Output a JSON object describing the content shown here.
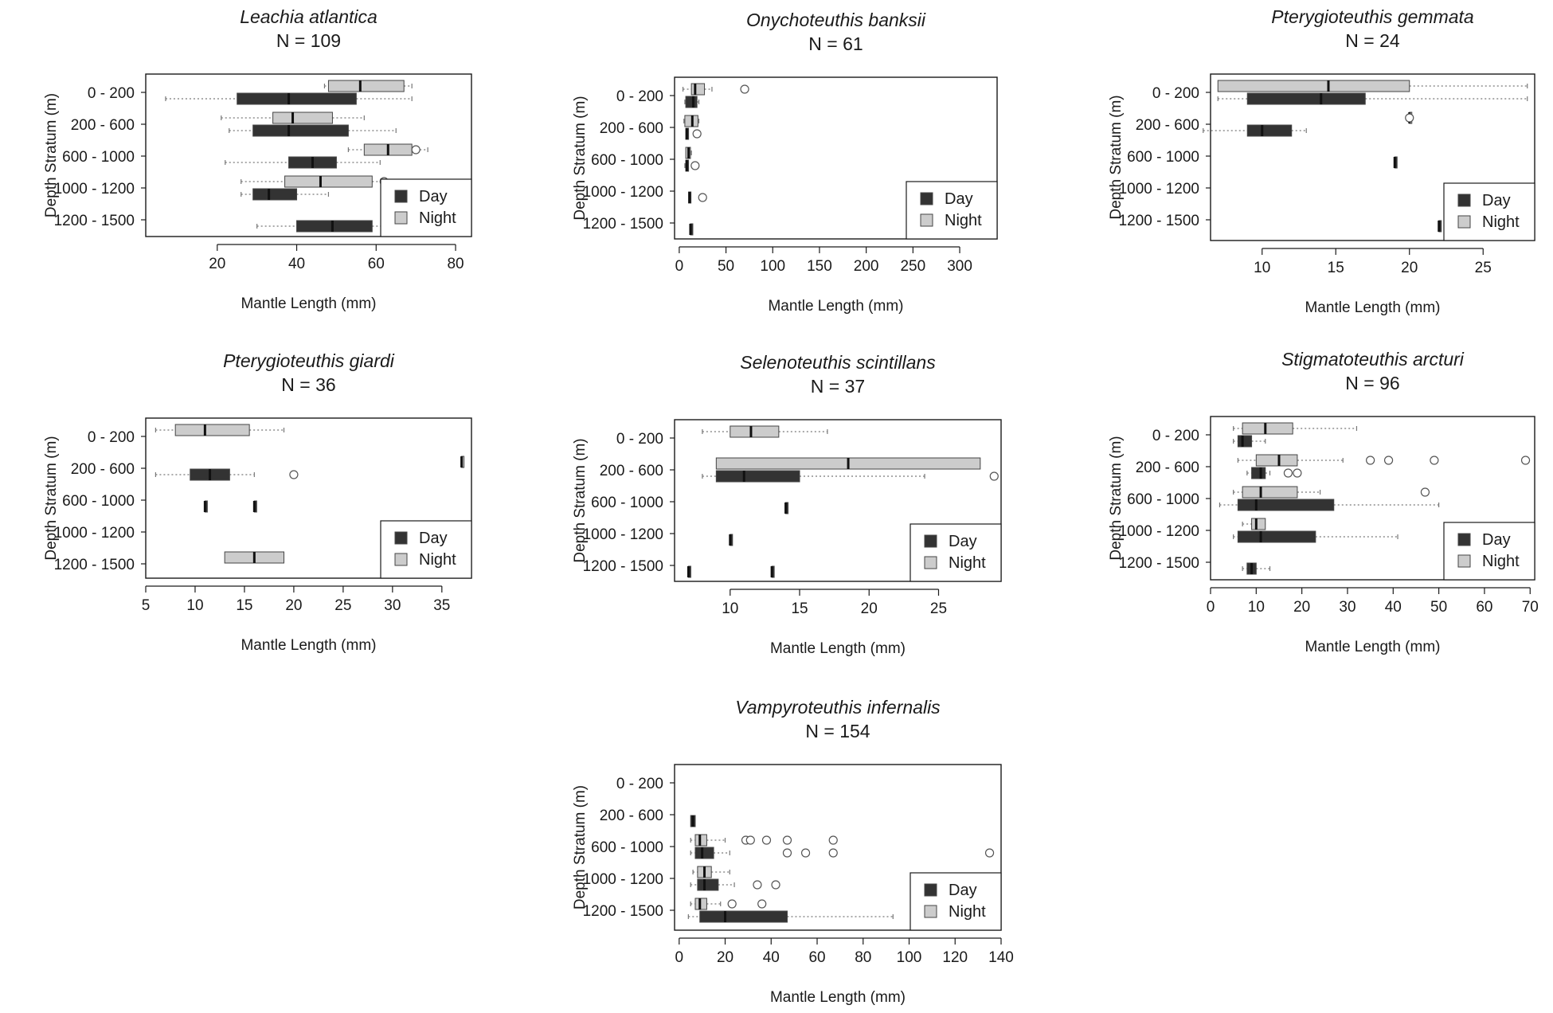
{
  "colors": {
    "day": "#333333",
    "night": "#cccccc",
    "axis": "#1a1a1a",
    "whisker": "#777777"
  },
  "chart_data": [
    {
      "type": "boxplot",
      "title": "Leachia atlantica",
      "n_label": "N = 109",
      "xlabel": "Mantle Length (mm)",
      "ylabel": "Depth Stratum (m)",
      "xlim": [
        2,
        84
      ],
      "xticks": [
        20,
        40,
        60,
        80
      ],
      "tick_labels": [
        "20",
        "40",
        "60",
        "80"
      ],
      "categories": [
        "0 - 200",
        "200 - 600",
        "600 - 1000",
        "1000 - 1200",
        "1200 - 1500"
      ],
      "legend": [
        "Day",
        "Night"
      ],
      "series": [
        {
          "name": "Night",
          "boxes": [
            {
              "cat": 0,
              "min": 47,
              "q1": 48,
              "med": 56,
              "q3": 67,
              "max": 69,
              "outliers": []
            },
            {
              "cat": 1,
              "min": 21,
              "q1": 34,
              "med": 39,
              "q3": 49,
              "max": 57,
              "outliers": []
            },
            {
              "cat": 2,
              "min": 53,
              "q1": 57,
              "med": 63,
              "q3": 69,
              "max": 73,
              "outliers": [
                70
              ]
            },
            {
              "cat": 3,
              "min": 26,
              "q1": 37,
              "med": 46,
              "q3": 59,
              "max": 62,
              "outliers": [
                62
              ]
            }
          ]
        },
        {
          "name": "Day",
          "boxes": [
            {
              "cat": 0,
              "min": 7,
              "q1": 25,
              "med": 38,
              "q3": 55,
              "max": 69,
              "outliers": []
            },
            {
              "cat": 1,
              "min": 23,
              "q1": 29,
              "med": 38,
              "q3": 53,
              "max": 65,
              "outliers": []
            },
            {
              "cat": 2,
              "min": 22,
              "q1": 38,
              "med": 44,
              "q3": 50,
              "max": 61,
              "outliers": []
            },
            {
              "cat": 3,
              "min": 26,
              "q1": 29,
              "med": 33,
              "q3": 40,
              "max": 48,
              "outliers": []
            },
            {
              "cat": 4,
              "min": 30,
              "q1": 40,
              "med": 49,
              "q3": 59,
              "max": 62,
              "outliers": []
            }
          ]
        }
      ]
    },
    {
      "type": "boxplot",
      "title": "Onychoteuthis banksii",
      "n_label": "N = 61",
      "xlabel": "Mantle Length (mm)",
      "ylabel": "Depth Stratum (m)",
      "xlim": [
        -5,
        340
      ],
      "xticks": [
        0,
        50,
        100,
        150,
        200,
        250,
        300
      ],
      "tick_labels": [
        "0",
        "50",
        "100",
        "150",
        "200",
        "250",
        "300"
      ],
      "categories": [
        "0 - 200",
        "200 - 600",
        "600 - 1000",
        "1000 - 1200",
        "1200 - 1500"
      ],
      "legend": [
        "Day",
        "Night"
      ],
      "series": [
        {
          "name": "Night",
          "boxes": [
            {
              "cat": 0,
              "min": 4,
              "q1": 13,
              "med": 17,
              "q3": 27,
              "max": 35,
              "outliers": [
                70
              ]
            },
            {
              "cat": 1,
              "min": 5,
              "q1": 6,
              "med": 14,
              "q3": 20,
              "max": 21,
              "outliers": []
            },
            {
              "cat": 2,
              "min": 7,
              "q1": 7,
              "med": 10,
              "q3": 12,
              "max": 13,
              "outliers": []
            }
          ]
        },
        {
          "name": "Day",
          "boxes": [
            {
              "cat": 0,
              "min": 6,
              "q1": 7,
              "med": 15,
              "q3": 19,
              "max": 21,
              "outliers": []
            },
            {
              "cat": 1,
              "min": 7,
              "q1": 7,
              "med": 8,
              "q3": 10,
              "max": 10,
              "outliers": [
                19
              ]
            },
            {
              "cat": 2,
              "min": 6,
              "q1": 7,
              "med": 8,
              "q3": 10,
              "max": 10,
              "outliers": [
                17
              ]
            },
            {
              "cat": 3,
              "min": 10,
              "q1": 10,
              "med": 11,
              "q3": 11,
              "max": 12,
              "outliers": [
                25
              ]
            },
            {
              "cat": 4,
              "min": 12,
              "q1": 12,
              "med": 12,
              "q3": 12,
              "max": 12,
              "outliers": []
            }
          ]
        }
      ]
    },
    {
      "type": "boxplot",
      "title": "Pterygioteuthis gemmata",
      "n_label": "N = 24",
      "xlabel": "Mantle Length (mm)",
      "ylabel": "Depth Stratum (m)",
      "xlim": [
        6.5,
        28.5
      ],
      "xticks": [
        10,
        15,
        20,
        25
      ],
      "tick_labels": [
        "10",
        "15",
        "20",
        "25"
      ],
      "categories": [
        "0 - 200",
        "200 - 600",
        "600 - 1000",
        "1000 - 1200",
        "1200 - 1500"
      ],
      "legend": [
        "Day",
        "Night"
      ],
      "series": [
        {
          "name": "Night",
          "boxes": [
            {
              "cat": 0,
              "min": 7,
              "q1": 7,
              "med": 14.5,
              "q3": 20,
              "max": 28,
              "outliers": []
            },
            {
              "cat": 1,
              "min": 20,
              "q1": 20,
              "med": 20,
              "q3": 20,
              "max": 20,
              "outliers": [
                20
              ]
            }
          ]
        },
        {
          "name": "Day",
          "boxes": [
            {
              "cat": 0,
              "min": 7,
              "q1": 9,
              "med": 14,
              "q3": 17,
              "max": 28,
              "outliers": []
            },
            {
              "cat": 1,
              "min": 6,
              "q1": 9,
              "med": 10,
              "q3": 12,
              "max": 13,
              "outliers": []
            },
            {
              "cat": 2,
              "min": 19,
              "q1": 19,
              "med": 19,
              "q3": 19,
              "max": 19,
              "outliers": []
            },
            {
              "cat": 4,
              "min": 22,
              "q1": 22,
              "med": 22,
              "q3": 22,
              "max": 22,
              "outliers": []
            }
          ]
        }
      ]
    },
    {
      "type": "boxplot",
      "title": "Pterygioteuthis giardi",
      "n_label": "N = 36",
      "xlabel": "Mantle Length (mm)",
      "ylabel": "Depth Stratum (m)",
      "xlim": [
        5,
        38
      ],
      "xticks": [
        5,
        10,
        15,
        20,
        25,
        30,
        35
      ],
      "tick_labels": [
        "5",
        "10",
        "15",
        "20",
        "25",
        "30",
        "35"
      ],
      "categories": [
        "0 - 200",
        "200 - 600",
        "600 - 1000",
        "1000 - 1200",
        "1200 - 1500"
      ],
      "legend": [
        "Day",
        "Night"
      ],
      "series": [
        {
          "name": "Night",
          "boxes": [
            {
              "cat": 0,
              "min": 6,
              "q1": 8,
              "med": 11,
              "q3": 15.5,
              "max": 19,
              "outliers": []
            },
            {
              "cat": 1,
              "min": 37,
              "q1": 37,
              "med": 37,
              "q3": 37,
              "max": 37,
              "outliers": []
            },
            {
              "cat": 4,
              "min": 13,
              "q1": 13,
              "med": 16,
              "q3": 19,
              "max": 19,
              "outliers": []
            }
          ]
        },
        {
          "name": "Day",
          "boxes": [
            {
              "cat": 1,
              "min": 6,
              "q1": 9.5,
              "med": 11.5,
              "q3": 13.5,
              "max": 16,
              "outliers": [
                20
              ]
            },
            {
              "cat": 2,
              "min": 11,
              "q1": 11,
              "med": 11,
              "q3": 11,
              "max": 11,
              "outliers": []
            },
            {
              "cat": 2,
              "min": 16,
              "q1": 16,
              "med": 16,
              "q3": 16,
              "max": 16,
              "outliers": []
            }
          ]
        }
      ]
    },
    {
      "type": "boxplot",
      "title": "Selenoteuthis scintillans",
      "n_label": "N = 37",
      "xlabel": "Mantle Length (mm)",
      "ylabel": "Depth Stratum (m)",
      "xlim": [
        6,
        29.5
      ],
      "xticks": [
        10,
        15,
        20,
        25
      ],
      "tick_labels": [
        "10",
        "15",
        "20",
        "25"
      ],
      "categories": [
        "0 - 200",
        "200 - 600",
        "600 - 1000",
        "1000 - 1200",
        "1200 - 1500"
      ],
      "legend": [
        "Day",
        "Night"
      ],
      "series": [
        {
          "name": "Night",
          "boxes": [
            {
              "cat": 0,
              "min": 8,
              "q1": 10,
              "med": 11.5,
              "q3": 13.5,
              "max": 17,
              "outliers": []
            },
            {
              "cat": 1,
              "min": 9,
              "q1": 9,
              "med": 18.5,
              "q3": 28,
              "max": 28,
              "outliers": []
            }
          ]
        },
        {
          "name": "Day",
          "boxes": [
            {
              "cat": 1,
              "min": 8,
              "q1": 9,
              "med": 11,
              "q3": 15,
              "max": 24,
              "outliers": [
                29
              ]
            },
            {
              "cat": 2,
              "min": 14,
              "q1": 14,
              "med": 14,
              "q3": 14,
              "max": 14,
              "outliers": []
            },
            {
              "cat": 3,
              "min": 10,
              "q1": 10,
              "med": 10,
              "q3": 10,
              "max": 10,
              "outliers": []
            },
            {
              "cat": 4,
              "min": 13,
              "q1": 13,
              "med": 13,
              "q3": 13,
              "max": 13,
              "outliers": []
            },
            {
              "cat": 4,
              "min": 7,
              "q1": 7,
              "med": 7,
              "q3": 7,
              "max": 7,
              "outliers": []
            }
          ]
        }
      ]
    },
    {
      "type": "boxplot",
      "title": "Stigmatoteuthis arcturi",
      "n_label": "N = 96",
      "xlabel": "Mantle Length (mm)",
      "ylabel": "Depth Stratum (m)",
      "xlim": [
        0,
        71
      ],
      "xticks": [
        0,
        10,
        20,
        30,
        40,
        50,
        60,
        70
      ],
      "tick_labels": [
        "0",
        "10",
        "20",
        "30",
        "40",
        "50",
        "60",
        "70"
      ],
      "categories": [
        "0 - 200",
        "200 - 600",
        "600 - 1000",
        "1000 - 1200",
        "1200 - 1500"
      ],
      "legend": [
        "Day",
        "Night"
      ],
      "series": [
        {
          "name": "Night",
          "boxes": [
            {
              "cat": 0,
              "min": 5,
              "q1": 7,
              "med": 12,
              "q3": 18,
              "max": 32,
              "outliers": []
            },
            {
              "cat": 1,
              "min": 6,
              "q1": 10,
              "med": 15,
              "q3": 19,
              "max": 29,
              "outliers": [
                35,
                39,
                49,
                69
              ]
            },
            {
              "cat": 2,
              "min": 5,
              "q1": 7,
              "med": 11,
              "q3": 19,
              "max": 24,
              "outliers": [
                47
              ]
            },
            {
              "cat": 3,
              "min": 7,
              "q1": 9,
              "med": 10,
              "q3": 12,
              "max": 12,
              "outliers": []
            }
          ]
        },
        {
          "name": "Day",
          "boxes": [
            {
              "cat": 0,
              "min": 5,
              "q1": 6,
              "med": 7,
              "q3": 9,
              "max": 12,
              "outliers": []
            },
            {
              "cat": 1,
              "min": 8,
              "q1": 9,
              "med": 11,
              "q3": 12,
              "max": 13,
              "outliers": [
                17,
                19
              ]
            },
            {
              "cat": 2,
              "min": 2,
              "q1": 6,
              "med": 10,
              "q3": 27,
              "max": 50,
              "outliers": []
            },
            {
              "cat": 3,
              "min": 5,
              "q1": 6,
              "med": 11,
              "q3": 23,
              "max": 41,
              "outliers": []
            },
            {
              "cat": 4,
              "min": 7,
              "q1": 8,
              "med": 9,
              "q3": 10,
              "max": 13,
              "outliers": []
            }
          ]
        }
      ]
    },
    {
      "type": "boxplot",
      "title": "Vampyroteuthis infernalis",
      "n_label": "N = 154",
      "xlabel": "Mantle Length (mm)",
      "ylabel": "Depth Stratum (m)",
      "xlim": [
        -2,
        140
      ],
      "xticks": [
        0,
        20,
        40,
        60,
        80,
        100,
        120,
        140
      ],
      "tick_labels": [
        "0",
        "20",
        "40",
        "60",
        "80",
        "100",
        "120",
        "140"
      ],
      "categories": [
        "0 - 200",
        "200 - 600",
        "600 - 1000",
        "1000 - 1200",
        "1200 - 1500"
      ],
      "legend": [
        "Day",
        "Night"
      ],
      "series": [
        {
          "name": "Night",
          "boxes": [
            {
              "cat": 2,
              "min": 5,
              "q1": 7,
              "med": 9,
              "q3": 12,
              "max": 20,
              "outliers": [
                29,
                31,
                38,
                47,
                67
              ]
            },
            {
              "cat": 3,
              "min": 6,
              "q1": 8,
              "med": 11,
              "q3": 14,
              "max": 22,
              "outliers": []
            },
            {
              "cat": 4,
              "min": 5,
              "q1": 7,
              "med": 9,
              "q3": 12,
              "max": 18,
              "outliers": [
                23,
                36
              ]
            }
          ]
        },
        {
          "name": "Day",
          "boxes": [
            {
              "cat": 1,
              "min": 5,
              "q1": 5,
              "med": 6,
              "q3": 7,
              "max": 7,
              "outliers": []
            },
            {
              "cat": 2,
              "min": 5,
              "q1": 7,
              "med": 10,
              "q3": 15,
              "max": 22,
              "outliers": [
                47,
                55,
                67,
                135
              ]
            },
            {
              "cat": 3,
              "min": 5,
              "q1": 8,
              "med": 11,
              "q3": 17,
              "max": 24,
              "outliers": [
                34,
                42
              ]
            },
            {
              "cat": 4,
              "min": 4,
              "q1": 9,
              "med": 20,
              "q3": 47,
              "max": 93,
              "outliers": []
            }
          ]
        }
      ]
    }
  ]
}
